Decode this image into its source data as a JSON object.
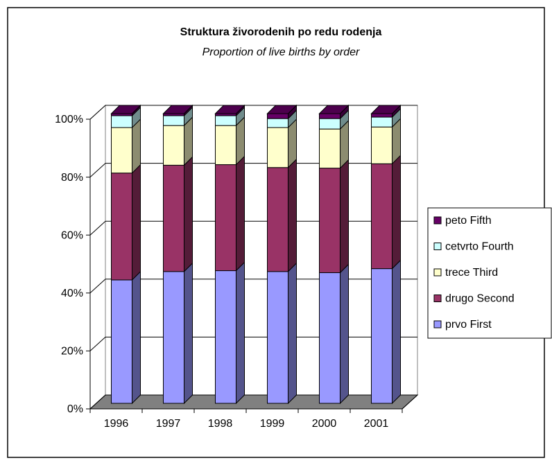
{
  "chart_data": {
    "type": "bar3d_stacked",
    "title": "Struktura živorodenih po redu rodenja",
    "subtitle": "Proportion of live births by order",
    "categories": [
      "1996",
      "1997",
      "1998",
      "1999",
      "2000",
      "2001"
    ],
    "series": [
      {
        "name": "prvo First",
        "color": "#9999ff",
        "values": [
          42.6,
          45.5,
          45.8,
          45.5,
          45.1,
          46.5
        ]
      },
      {
        "name": "drugo Second",
        "color": "#993366",
        "values": [
          36.9,
          36.7,
          36.6,
          35.9,
          36.1,
          36.2
        ]
      },
      {
        "name": "trece Third",
        "color": "#ffffcc",
        "values": [
          15.7,
          13.7,
          13.5,
          13.8,
          13.5,
          12.7
        ]
      },
      {
        "name": "cetvrto Fourth",
        "color": "#ccffff",
        "values": [
          4.1,
          3.4,
          3.4,
          3.1,
          3.6,
          3.4
        ]
      },
      {
        "name": "peto Fifth",
        "color": "#660066",
        "values": [
          0.7,
          0.7,
          0.7,
          1.7,
          1.7,
          1.2
        ]
      }
    ],
    "ylim": [
      0,
      100
    ],
    "yticks": [
      {
        "value": 0,
        "label": "0%"
      },
      {
        "value": 20,
        "label": "20%"
      },
      {
        "value": 40,
        "label": "40%"
      },
      {
        "value": 60,
        "label": "60%"
      },
      {
        "value": 80,
        "label": "80%"
      },
      {
        "value": 100,
        "label": "100%"
      }
    ],
    "grid": true,
    "legend": "right"
  }
}
